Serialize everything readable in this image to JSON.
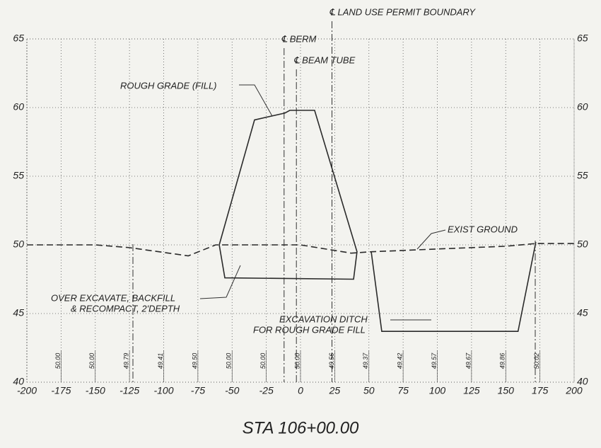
{
  "chart_data": {
    "type": "line",
    "title": "STA 106+00.00",
    "xlim": [
      -200,
      200
    ],
    "xticks": [
      -200,
      -175,
      -150,
      -125,
      -100,
      -75,
      -50,
      -25,
      0,
      25,
      50,
      75,
      100,
      125,
      150,
      175,
      200
    ],
    "ylim": [
      40,
      65
    ],
    "yticks": [
      40,
      45,
      50,
      55,
      60,
      65
    ],
    "grid": true,
    "series": [
      {
        "color": "#2a2a2a",
        "dash": "solid",
        "x": [
          -59.4,
          -33.6,
          -11.4,
          -7.8,
          10.3,
          41.3,
          38.8,
          -55.3,
          -59.4
        ],
        "values": [
          50,
          59.1,
          59.6,
          59.8,
          59.8,
          49.5,
          47.5,
          47.6,
          50
        ]
      },
      {
        "color": "#2a2a2a",
        "dash": "dashed",
        "x": [
          -200,
          -150,
          -125,
          -82,
          -62,
          0,
          37,
          52,
          100,
          150,
          172,
          200
        ],
        "values": [
          50,
          50,
          49.8,
          49.2,
          50,
          50,
          49.4,
          49.5,
          49.7,
          49.9,
          50.1,
          50.1
        ]
      },
      {
        "color": "#2a2a2a",
        "dash": "solid",
        "x": [
          51.7,
          59.4,
          159,
          172
        ],
        "values": [
          49.5,
          43.7,
          43.7,
          50.2
        ]
      }
    ],
    "centerlines": [
      {
        "label": "℄ LAND USE PERMIT BOUNDARY",
        "x": 23
      },
      {
        "label": "℄ BERM",
        "x": -12
      },
      {
        "label": "℄ BEAM TUBE",
        "x": -3
      }
    ],
    "elevations": {
      "x": [
        -175,
        -150,
        -125,
        -100,
        -75,
        -50,
        -25,
        0,
        25,
        50,
        75,
        100,
        125,
        150,
        175
      ],
      "labels": [
        "50.00",
        "50.00",
        "49.79",
        "49.41",
        "49.50",
        "50.00",
        "50.00",
        "50.00",
        "49.56",
        "49.37",
        "49.42",
        "49.57",
        "49.67",
        "49.86",
        "50.02"
      ]
    },
    "annotations": [
      "ROUGH GRADE (FILL)",
      "OVER EXCAVATE, BACKFILL",
      "& RECOMPACT, 2'DEPTH",
      "EXCAVATION DITCH",
      "FOR ROUGH GRADE FILL",
      "EXIST GROUND"
    ]
  }
}
